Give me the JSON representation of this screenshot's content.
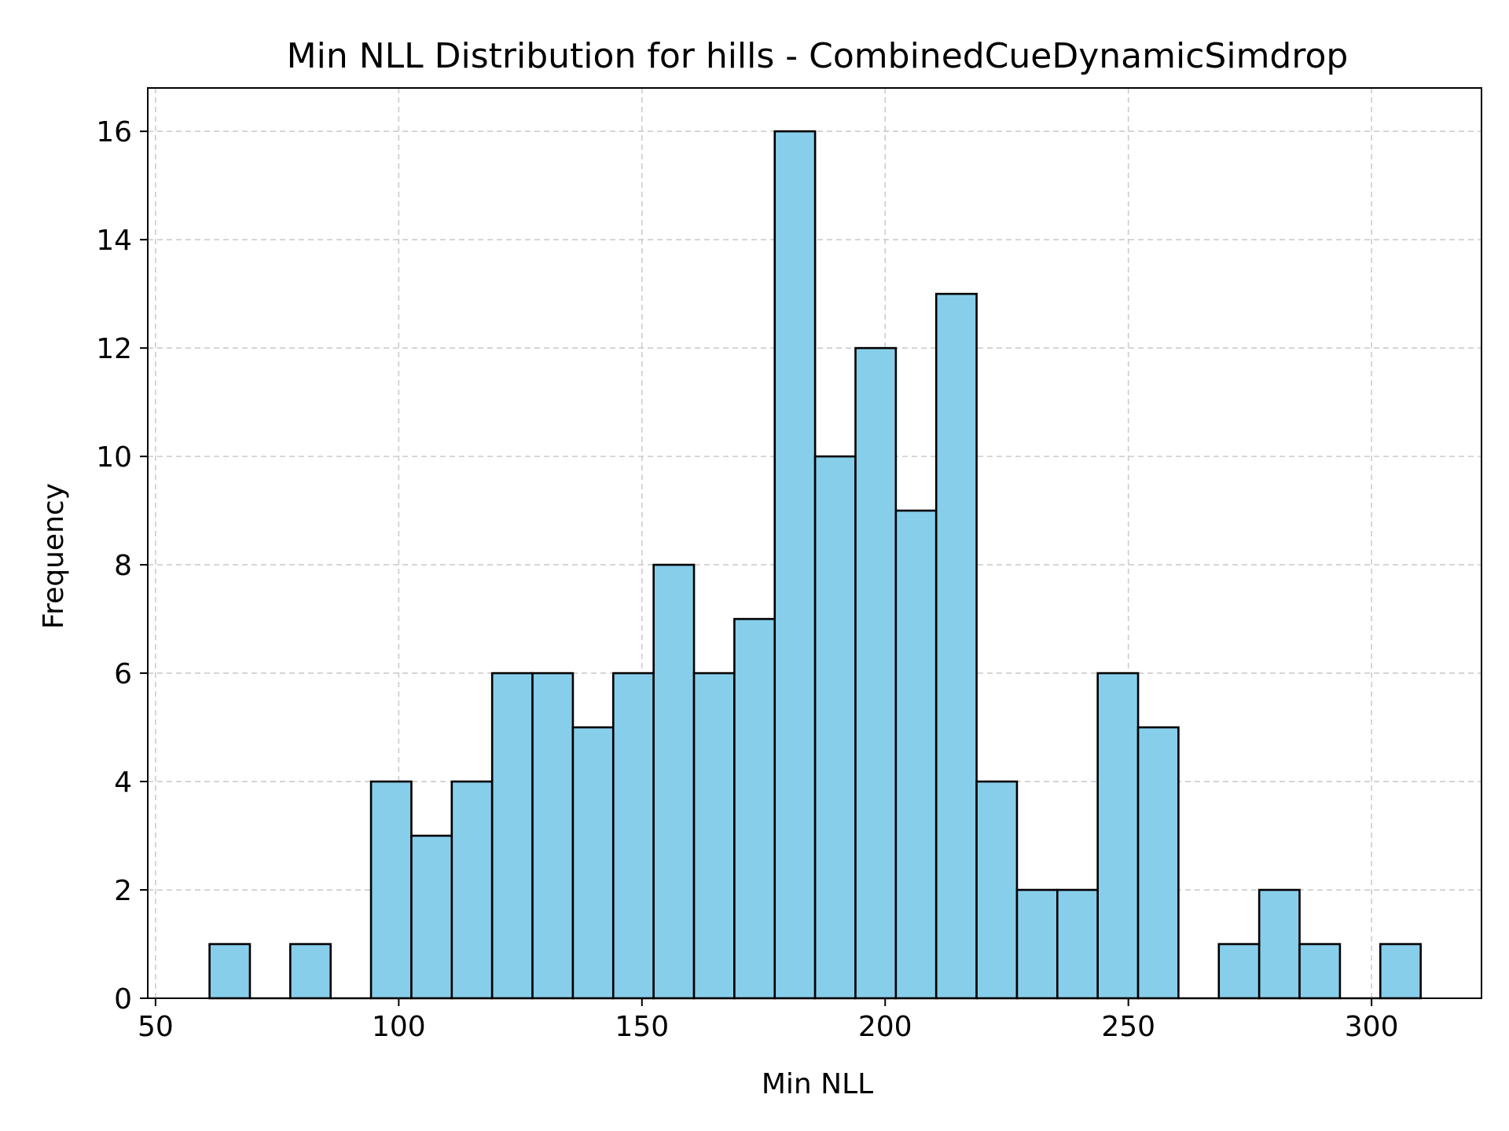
{
  "chart_data": {
    "type": "bar",
    "title": "Min NLL Distribution for hills - CombinedCueDynamicSimdrop",
    "xlabel": "Min NLL",
    "ylabel": "Frequency",
    "xlim": [
      48.4,
      322.6
    ],
    "ylim": [
      0,
      16.8
    ],
    "xticks": [
      50,
      100,
      150,
      200,
      250,
      300
    ],
    "yticks": [
      0,
      2,
      4,
      6,
      8,
      10,
      12,
      14,
      16
    ],
    "grid": true,
    "bin_edges": [
      61.1,
      69.4,
      77.7,
      86.0,
      94.3,
      102.6,
      110.9,
      119.2,
      127.5,
      135.8,
      144.1,
      152.4,
      160.7,
      169.0,
      177.3,
      185.6,
      193.9,
      202.2,
      210.5,
      218.8,
      227.1,
      235.4,
      243.7,
      252.0,
      260.3,
      268.6,
      276.9,
      285.2,
      293.5,
      301.8,
      310.1
    ],
    "values": [
      1,
      0,
      1,
      0,
      4,
      3,
      4,
      6,
      6,
      5,
      6,
      8,
      6,
      7,
      16,
      10,
      12,
      9,
      13,
      4,
      2,
      2,
      6,
      5,
      0,
      1,
      2,
      1,
      0,
      1
    ],
    "colors": {
      "bar_fill": "#87CEEB",
      "bar_edge": "#000000",
      "grid": "#cccccc",
      "axes": "#000000",
      "background": "#ffffff"
    }
  }
}
